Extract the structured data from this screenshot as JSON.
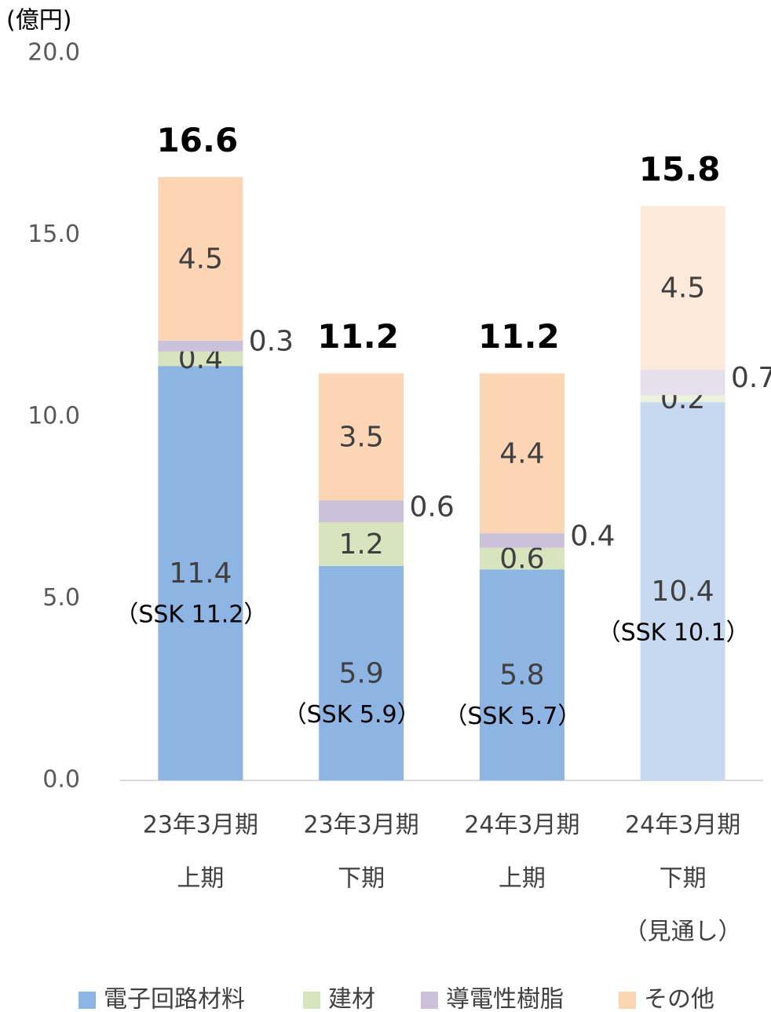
{
  "chart_data": {
    "type": "stacked-bar",
    "unit_label": "(億円)",
    "categories": [
      [
        "23年3月期",
        "上期"
      ],
      [
        "23年3月期",
        "下期"
      ],
      [
        "24年3月期",
        "上期"
      ],
      [
        "24年3月期",
        "下期",
        "（見通し）"
      ]
    ],
    "series": [
      {
        "name": "電子回路材料",
        "color": "#8eb4e3",
        "colors": [
          "#8eb4e3",
          "#8eb4e3",
          "#8eb4e3",
          "#c6d9f1"
        ],
        "values": [
          11.4,
          5.9,
          5.8,
          10.4
        ],
        "label_position": "center"
      },
      {
        "name": "建材",
        "color": "#d7e4bd",
        "colors": [
          "#d7e4bd",
          "#d7e4bd",
          "#d7e4bd",
          "#ebf1de"
        ],
        "values": [
          0.4,
          1.2,
          0.6,
          0.2
        ],
        "label_position": "center"
      },
      {
        "name": "導電性樹脂",
        "color": "#ccc1da",
        "colors": [
          "#ccc1da",
          "#ccc1da",
          "#ccc1da",
          "#e6e0ec"
        ],
        "values": [
          0.3,
          0.6,
          0.4,
          0.7
        ],
        "label_position": "right"
      },
      {
        "name": "その他",
        "color": "#fcd5b5",
        "colors": [
          "#fcd5b5",
          "#fcd5b5",
          "#fcd5b5",
          "#fde9d9"
        ],
        "values": [
          4.5,
          3.5,
          4.4,
          4.5
        ],
        "label_position": "center"
      }
    ],
    "totals": [
      16.6,
      11.2,
      11.2,
      15.8
    ],
    "annotations": [
      "（SSK 11.2）",
      "（SSK 5.9）",
      "（SSK 5.7）",
      "（SSK 10.1）"
    ],
    "ylim": [
      0,
      20
    ],
    "yticks": [
      {
        "value": 0,
        "label": "0.0"
      },
      {
        "value": 5,
        "label": "5.0"
      },
      {
        "value": 10,
        "label": "10.0"
      },
      {
        "value": 15,
        "label": "15.0"
      },
      {
        "value": 20,
        "label": "20.0"
      }
    ],
    "grid": false,
    "legend": "bottom"
  }
}
